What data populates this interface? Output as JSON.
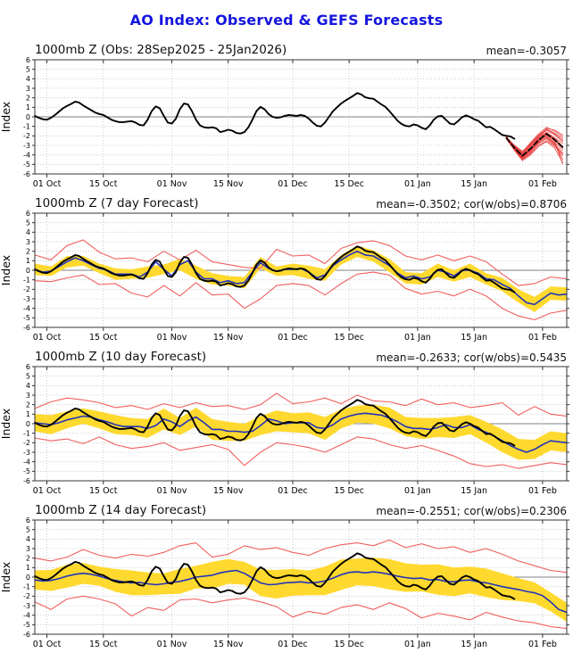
{
  "page_title": "AO Index: Observed & GEFS Forecasts",
  "colors": {
    "title": "#1515dd",
    "observed_line": "#000000",
    "ensemble_mean_line": "#2233bb",
    "spread_band": "#ffd92e",
    "min_max_line": "#f15e5e",
    "fan_member_line": "#e63232",
    "fan_mean_dashed": "#000000",
    "grid": "#c3c3c3",
    "zero_line": "#818181",
    "frame": "#333333"
  },
  "chart_data": {
    "type": "line",
    "title": "AO Index: Observed & GEFS Forecasts",
    "x_axis": {
      "domain_days": [
        0,
        132
      ],
      "tick_days": [
        3,
        17,
        34,
        48,
        64,
        78,
        95,
        109,
        126
      ],
      "tick_labels": [
        "01 Oct",
        "15 Oct",
        "01 Nov",
        "15 Nov",
        "01 Dec",
        "15 Dec",
        "01 Jan",
        "15 Jan",
        "01 Feb"
      ]
    },
    "y_axis": {
      "min": -6,
      "max": 6,
      "tick_step": 1,
      "label": "Index"
    },
    "observed": {
      "start_day": 0,
      "step_days": 1,
      "values": [
        0.1,
        -0.1,
        -0.25,
        -0.3,
        -0.1,
        0.2,
        0.55,
        0.9,
        1.15,
        1.35,
        1.6,
        1.5,
        1.2,
        0.95,
        0.7,
        0.45,
        0.3,
        0.2,
        -0.05,
        -0.3,
        -0.45,
        -0.55,
        -0.55,
        -0.5,
        -0.45,
        -0.6,
        -0.85,
        -0.9,
        -0.3,
        0.6,
        1.1,
        0.9,
        0.1,
        -0.6,
        -0.7,
        -0.2,
        0.8,
        1.4,
        1.3,
        0.6,
        -0.3,
        -0.9,
        -1.1,
        -1.15,
        -1.1,
        -1.2,
        -1.6,
        -1.5,
        -1.35,
        -1.45,
        -1.7,
        -1.75,
        -1.6,
        -1.1,
        -0.3,
        0.6,
        1.05,
        0.8,
        0.3,
        0.0,
        -0.1,
        -0.05,
        0.1,
        0.2,
        0.15,
        0.1,
        0.2,
        0.1,
        -0.2,
        -0.6,
        -0.95,
        -1.0,
        -0.6,
        0.0,
        0.6,
        1.0,
        1.4,
        1.7,
        1.95,
        2.2,
        2.5,
        2.35,
        2.05,
        1.95,
        1.9,
        1.6,
        1.3,
        1.05,
        0.6,
        0.1,
        -0.4,
        -0.75,
        -0.95,
        -1.0,
        -0.8,
        -0.9,
        -1.15,
        -1.3,
        -0.9,
        -0.3,
        0.05,
        0.1,
        -0.3,
        -0.7,
        -0.8,
        -0.45,
        -0.05,
        0.15,
        0.0,
        -0.25,
        -0.4,
        -0.75,
        -1.1,
        -1.05,
        -1.3,
        -1.6,
        -1.9,
        -2.0,
        -2.05,
        -2.3
      ]
    },
    "panels": [
      {
        "title": "1000mb Z (Obs: 28Sep2025 - 25Jan2026)",
        "stats": "mean=-0.3057",
        "fan": {
          "days": [
            117,
            119,
            121,
            123,
            125,
            127,
            129,
            131
          ],
          "mean": [
            -2.2,
            -3.25,
            -4.1,
            -3.35,
            -2.45,
            -1.8,
            -2.4,
            -3.2
          ],
          "members": [
            [
              -2.1,
              -3.3,
              -4.3,
              -3.5,
              -2.5,
              -1.9,
              -2.5,
              -3.3
            ],
            [
              -2.2,
              -3.0,
              -3.8,
              -2.9,
              -2.0,
              -1.3,
              -1.7,
              -2.3
            ],
            [
              -2.3,
              -3.5,
              -4.5,
              -3.9,
              -3.0,
              -2.5,
              -3.1,
              -4.1
            ],
            [
              -2.1,
              -3.2,
              -4.1,
              -3.2,
              -2.2,
              -1.6,
              -2.2,
              -2.8
            ],
            [
              -2.2,
              -3.1,
              -3.7,
              -2.7,
              -1.8,
              -1.1,
              -1.5,
              -2.1
            ],
            [
              -2.3,
              -3.4,
              -4.4,
              -3.7,
              -2.8,
              -2.2,
              -2.9,
              -3.8
            ],
            [
              -2.1,
              -3.3,
              -4.2,
              -3.3,
              -2.4,
              -1.7,
              -2.3,
              -3.1
            ],
            [
              -2.2,
              -3.2,
              -4.0,
              -3.0,
              -2.1,
              -1.4,
              -1.9,
              -2.6
            ],
            [
              -2.3,
              -3.4,
              -4.3,
              -3.6,
              -2.7,
              -2.0,
              -2.7,
              -3.5
            ],
            [
              -2.1,
              -3.1,
              -3.9,
              -3.1,
              -2.3,
              -1.2,
              -1.4,
              -1.9
            ],
            [
              -2.2,
              -3.3,
              -4.1,
              -3.4,
              -2.6,
              -2.1,
              -2.8,
              -4.5
            ],
            [
              -2.3,
              -3.5,
              -4.6,
              -4.0,
              -3.1,
              -2.6,
              -3.3,
              -4.8
            ],
            [
              -2.1,
              -3.2,
              -3.9,
              -2.8,
              -1.9,
              -1.3,
              -1.8,
              -2.5
            ],
            [
              -2.2,
              -3.4,
              -4.2,
              -3.5,
              -2.8,
              -2.3,
              -3.0,
              -3.9
            ],
            [
              -2.3,
              -3.3,
              -4.4,
              -3.8,
              -2.6,
              -1.8,
              -2.4,
              -3.2
            ],
            [
              -2.1,
              -3.0,
              -3.6,
              -2.9,
              -2.2,
              -1.7,
              -2.6,
              -5.0
            ]
          ]
        }
      },
      {
        "title": "1000mb Z (7 day Forecast)",
        "stats": "mean=-0.3502; cor(w/obs)=0.8706",
        "forecast": {
          "step_days": 2,
          "mean": [
            0.1,
            -0.2,
            -0.1,
            0.4,
            0.9,
            1.3,
            1.0,
            0.6,
            0.2,
            0.0,
            -0.4,
            -0.4,
            -0.4,
            -0.7,
            -0.2,
            0.9,
            0.1,
            -0.6,
            0.6,
            1.0,
            -0.2,
            -0.9,
            -0.9,
            -1.3,
            -1.1,
            -1.4,
            -1.3,
            -0.2,
            0.8,
            0.2,
            -0.1,
            0.1,
            0.1,
            0.2,
            -0.2,
            -0.8,
            -0.5,
            0.5,
            1.1,
            1.6,
            2.0,
            1.6,
            1.5,
            1.0,
            0.5,
            -0.3,
            -0.8,
            -0.6,
            -0.9,
            -0.7,
            0.0,
            -0.2,
            -0.6,
            0.0,
            0.0,
            -0.3,
            -0.9,
            -1.0,
            -1.5,
            -1.9,
            -2.7,
            -3.4,
            -3.6,
            -3.0,
            -2.4,
            -2.6,
            -2.5
          ],
          "band_step_days": 4,
          "band_half_width": [
            0.6,
            0.5,
            0.6,
            0.5,
            0.5,
            0.6,
            0.5,
            0.6,
            0.5,
            0.6,
            0.7,
            0.6,
            0.5,
            0.6,
            0.6,
            0.5,
            0.6,
            0.7,
            0.6,
            0.5,
            0.6,
            0.6,
            0.7,
            0.6,
            0.6,
            0.7,
            0.6,
            0.7,
            0.6,
            0.7,
            0.7,
            0.8,
            0.7,
            0.7
          ],
          "env_step_days": 4,
          "env_upper": [
            1.6,
            1.1,
            2.6,
            3.2,
            1.9,
            1.2,
            1.3,
            0.9,
            2.0,
            1.1,
            2.1,
            0.9,
            0.6,
            0.3,
            0.2,
            2.2,
            1.5,
            1.6,
            0.7,
            2.3,
            2.9,
            3.1,
            2.6,
            1.5,
            1.1,
            1.6,
            1.0,
            1.5,
            0.9,
            -0.4,
            -1.6,
            -1.4,
            -0.7,
            -0.9
          ],
          "env_lower": [
            -1.1,
            -1.2,
            -0.8,
            -0.5,
            -1.5,
            -1.4,
            -2.4,
            -2.8,
            -1.6,
            -2.7,
            -1.3,
            -2.6,
            -2.5,
            -4.0,
            -3.0,
            -1.6,
            -1.4,
            -1.6,
            -2.6,
            -1.4,
            -0.4,
            -0.2,
            -0.5,
            -1.9,
            -2.5,
            -2.2,
            -2.7,
            -2.0,
            -2.7,
            -4.0,
            -4.8,
            -5.2,
            -4.5,
            -4.2
          ]
        }
      },
      {
        "title": "1000mb Z (10 day Forecast)",
        "stats": "mean=-0.2633; cor(w/obs)=0.5435",
        "forecast": {
          "step_days": 2,
          "mean": [
            0.1,
            0.0,
            -0.1,
            0.1,
            0.4,
            0.6,
            0.8,
            0.7,
            0.4,
            0.2,
            -0.1,
            -0.3,
            -0.3,
            -0.3,
            -0.5,
            -0.2,
            0.5,
            0.2,
            -0.3,
            0.3,
            0.7,
            0.1,
            -0.6,
            -0.6,
            -0.8,
            -0.8,
            -0.9,
            -0.8,
            -0.2,
            0.5,
            0.3,
            0.0,
            0.1,
            0.1,
            0.1,
            -0.4,
            -0.5,
            -0.1,
            0.5,
            0.8,
            1.0,
            1.1,
            1.0,
            0.9,
            0.6,
            0.2,
            -0.3,
            -0.5,
            -0.5,
            -0.6,
            -0.4,
            -0.1,
            -0.4,
            -0.4,
            -0.1,
            -0.6,
            -0.9,
            -1.3,
            -1.8,
            -2.3,
            -2.7,
            -3.0,
            -2.7,
            -2.2,
            -1.8,
            -1.9,
            -2.0
          ],
          "band_step_days": 4,
          "band_half_width": [
            0.9,
            1.0,
            0.9,
            0.8,
            0.9,
            1.0,
            0.9,
            1.0,
            1.1,
            0.9,
            1.0,
            1.1,
            1.0,
            0.9,
            1.0,
            1.1,
            1.0,
            1.1,
            1.2,
            1.0,
            0.9,
            1.0,
            1.1,
            1.0,
            1.1,
            1.0,
            1.1,
            1.0,
            1.1,
            1.2,
            1.1,
            1.0,
            1.0,
            1.0
          ],
          "env_step_days": 4,
          "env_upper": [
            1.6,
            2.3,
            2.7,
            2.5,
            2.2,
            1.7,
            1.9,
            1.5,
            2.1,
            1.7,
            2.2,
            1.8,
            1.9,
            1.5,
            2.0,
            3.2,
            2.1,
            2.3,
            2.7,
            2.1,
            3.0,
            2.4,
            2.3,
            1.9,
            2.6,
            2.0,
            2.2,
            1.7,
            1.9,
            2.2,
            0.9,
            1.8,
            1.0,
            0.8
          ],
          "env_lower": [
            -1.5,
            -1.8,
            -1.6,
            -2.1,
            -1.4,
            -2.2,
            -2.6,
            -2.4,
            -2.0,
            -2.8,
            -2.5,
            -2.2,
            -2.7,
            -4.4,
            -3.0,
            -2.0,
            -2.2,
            -2.5,
            -3.0,
            -2.2,
            -1.4,
            -1.6,
            -2.2,
            -2.6,
            -2.3,
            -2.8,
            -3.4,
            -4.2,
            -4.5,
            -4.3,
            -4.7,
            -4.4,
            -4.1,
            -4.3
          ]
        }
      },
      {
        "title": "1000mb Z (14 day Forecast)",
        "stats": "mean=-0.2551; cor(w/obs)=0.2306",
        "forecast": {
          "step_days": 2,
          "mean": [
            -0.3,
            -0.4,
            -0.35,
            -0.15,
            0.1,
            0.3,
            0.4,
            0.3,
            0.1,
            -0.15,
            -0.35,
            -0.5,
            -0.6,
            -0.55,
            -0.7,
            -0.8,
            -0.7,
            -0.55,
            -0.45,
            -0.25,
            0.0,
            0.1,
            0.2,
            0.45,
            0.6,
            0.7,
            0.4,
            -0.1,
            -0.6,
            -0.8,
            -0.75,
            -0.6,
            -0.55,
            -0.5,
            -0.6,
            -0.55,
            -0.4,
            -0.1,
            0.25,
            0.5,
            0.55,
            0.45,
            0.55,
            0.45,
            0.3,
            0.1,
            -0.05,
            -0.15,
            -0.1,
            -0.3,
            -0.25,
            -0.45,
            -0.5,
            -0.35,
            -0.3,
            -0.5,
            -0.6,
            -0.8,
            -1.0,
            -1.15,
            -1.3,
            -1.5,
            -1.65,
            -1.95,
            -2.6,
            -3.4,
            -3.7
          ],
          "band_step_days": 4,
          "band_half_width": [
            1.0,
            1.1,
            1.2,
            1.1,
            1.0,
            1.2,
            1.3,
            1.2,
            1.1,
            1.3,
            1.2,
            1.4,
            1.3,
            1.2,
            1.4,
            1.5,
            1.4,
            1.3,
            1.5,
            1.6,
            1.4,
            1.5,
            1.6,
            1.5,
            1.4,
            1.6,
            1.5,
            1.4,
            1.5,
            1.4,
            1.2,
            1.1,
            1.0,
            1.0
          ],
          "env_step_days": 4,
          "env_upper": [
            2.0,
            1.7,
            2.1,
            2.9,
            2.3,
            2.0,
            2.4,
            2.2,
            2.6,
            3.3,
            3.6,
            2.1,
            2.4,
            3.3,
            2.9,
            3.1,
            2.6,
            2.3,
            3.0,
            3.4,
            3.6,
            3.3,
            3.9,
            3.1,
            3.5,
            3.0,
            3.2,
            2.6,
            3.0,
            2.4,
            1.7,
            1.2,
            0.7,
            0.5
          ],
          "env_lower": [
            -2.6,
            -3.4,
            -2.3,
            -2.0,
            -2.3,
            -2.8,
            -4.1,
            -3.2,
            -3.5,
            -2.4,
            -2.3,
            -2.7,
            -2.4,
            -2.2,
            -2.6,
            -3.1,
            -4.2,
            -3.6,
            -3.9,
            -3.2,
            -2.9,
            -3.4,
            -2.7,
            -3.3,
            -4.3,
            -3.8,
            -4.1,
            -4.5,
            -3.7,
            -4.2,
            -4.6,
            -4.8,
            -5.2,
            -5.4
          ]
        }
      }
    ]
  }
}
